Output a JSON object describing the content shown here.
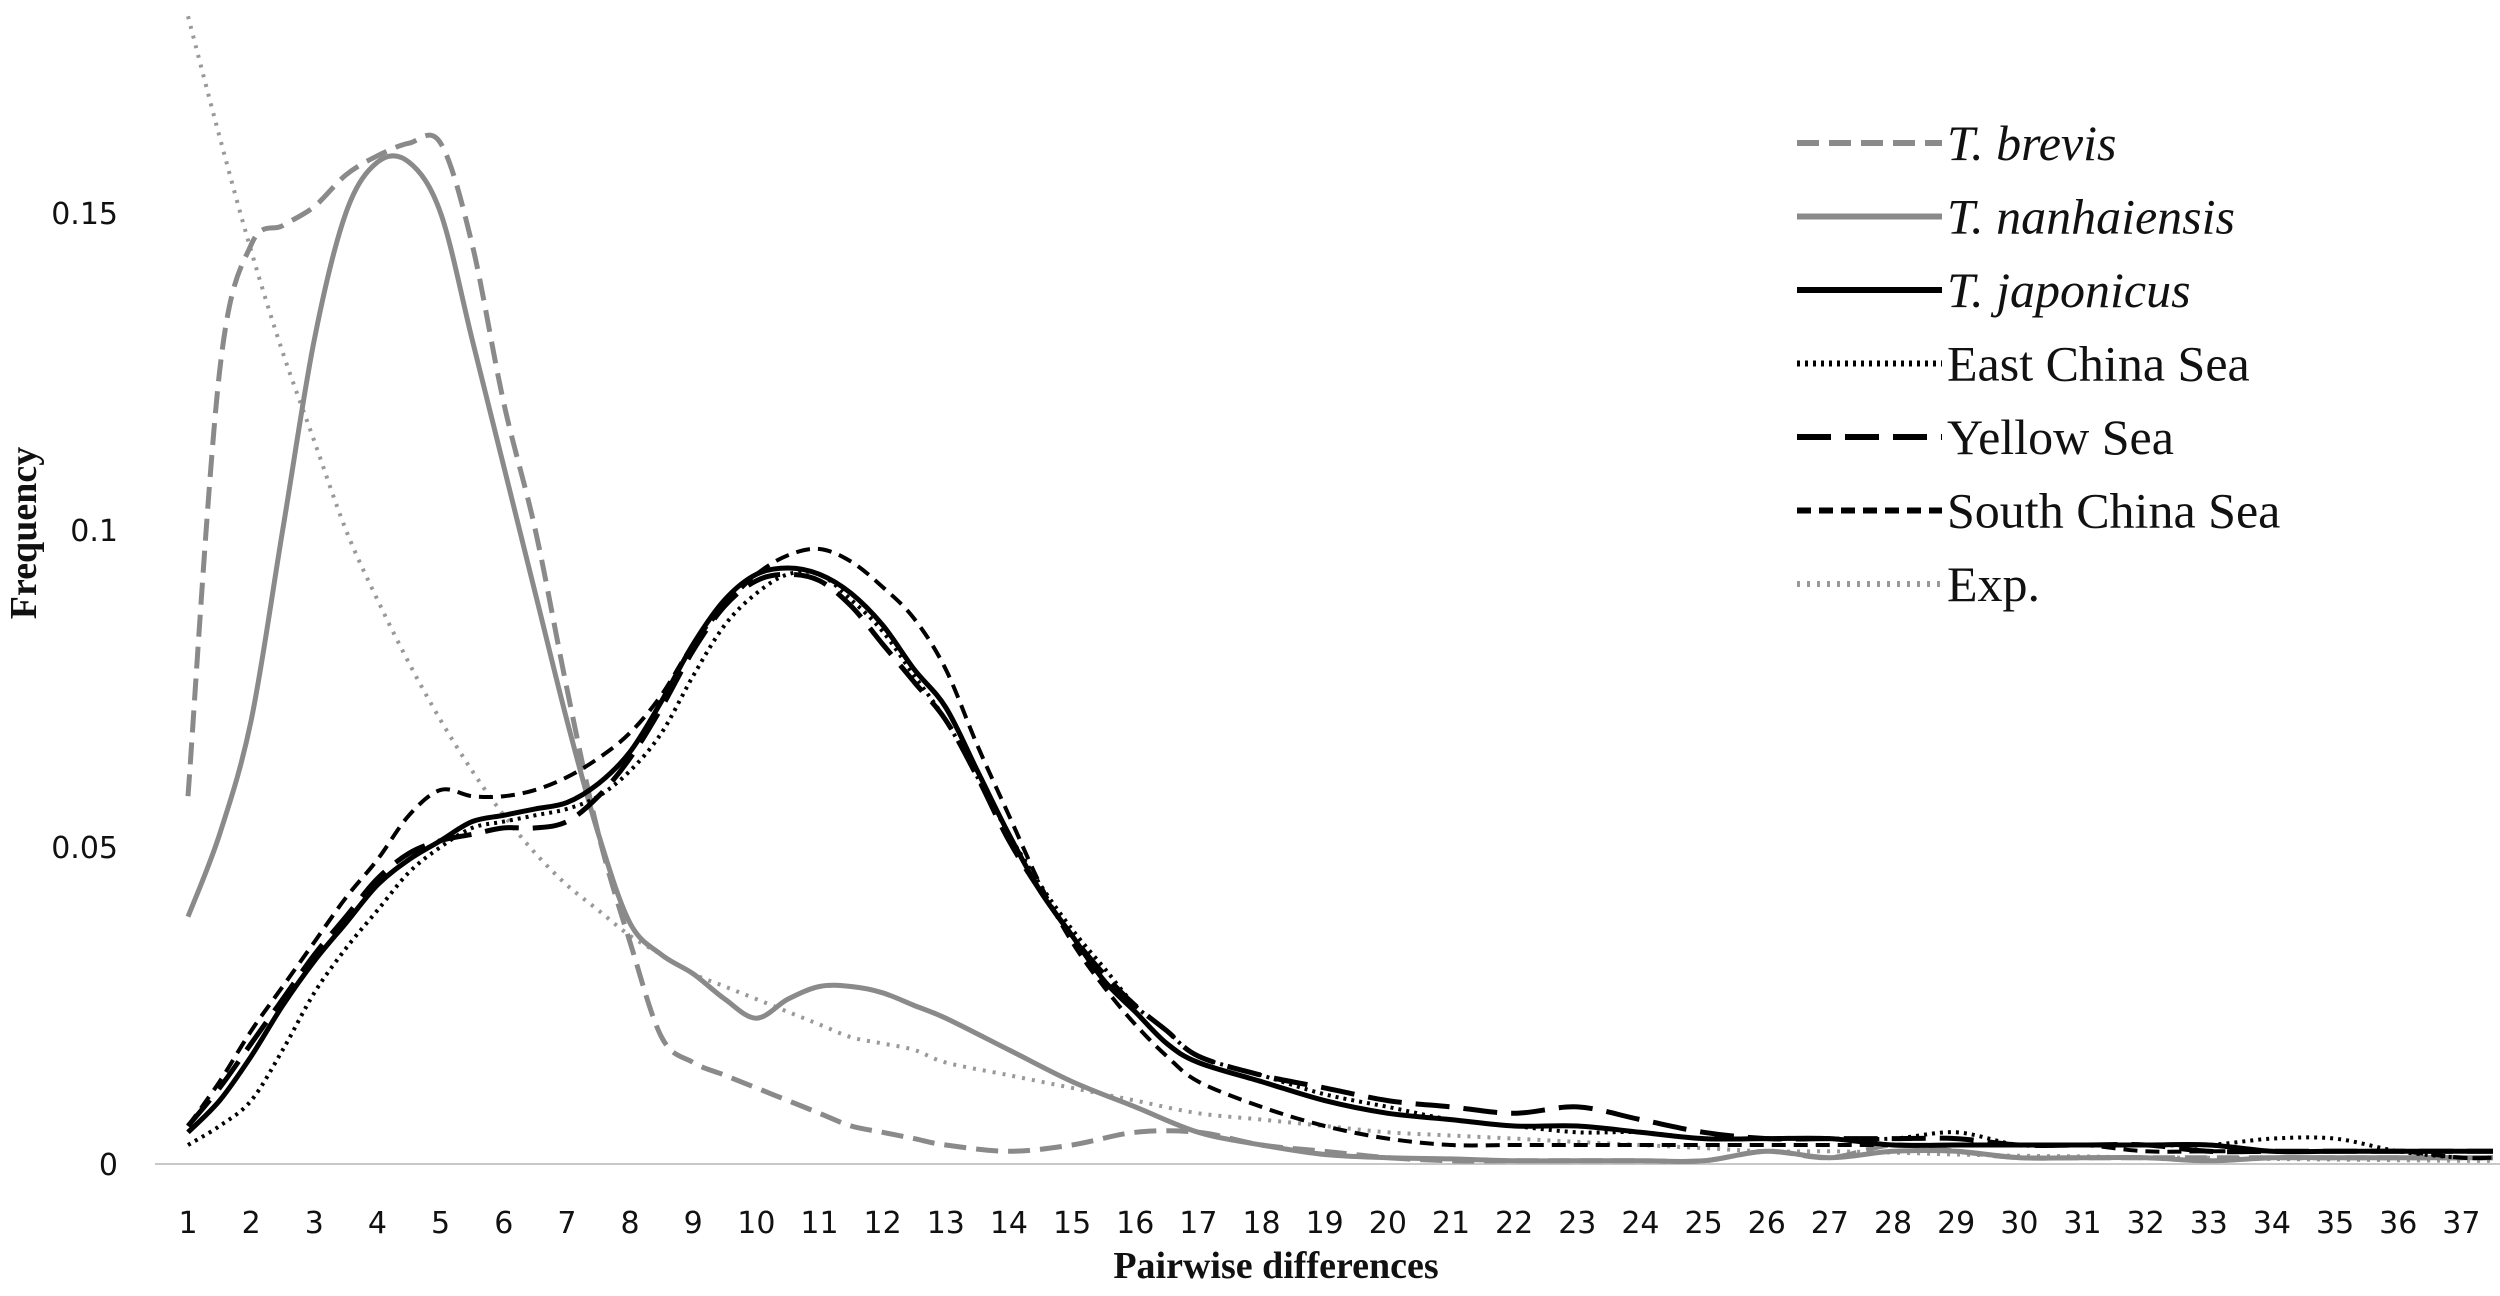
{
  "chart_data": {
    "type": "line",
    "xlabel": "Pairwise differences",
    "ylabel": "Frequency",
    "xlim": [
      1,
      37.5
    ],
    "ylim": [
      0,
      0.182
    ],
    "x_ticks": [
      1,
      2,
      3,
      4,
      5,
      6,
      7,
      8,
      9,
      10,
      11,
      12,
      13,
      14,
      15,
      16,
      17,
      18,
      19,
      20,
      21,
      22,
      23,
      24,
      25,
      26,
      27,
      28,
      29,
      30,
      31,
      32,
      33,
      34,
      35,
      36,
      37
    ],
    "y_ticks": [
      {
        "value": 0,
        "label": "0"
      },
      {
        "value": 0.05,
        "label": "0.05"
      },
      {
        "value": 0.1,
        "label": "0.1"
      },
      {
        "value": 0.15,
        "label": "0.15"
      }
    ],
    "grid": false,
    "legend_position": "top-right",
    "series": [
      {
        "name": "T. brevis",
        "color": "#8a8a8a",
        "style": "dashed",
        "italic": true,
        "x": [
          1,
          1.5,
          2,
          2.5,
          3,
          3.5,
          4,
          4.5,
          5,
          5.5,
          6,
          6.5,
          7,
          7.5,
          8,
          8.5,
          9,
          9.5,
          10,
          10.5,
          11,
          11.5,
          12,
          12.5,
          13,
          14,
          15,
          16,
          17,
          18,
          19,
          20,
          21,
          22,
          23,
          24,
          25,
          26,
          27,
          28,
          29,
          30,
          31,
          32,
          33,
          34,
          35,
          36,
          37,
          37.5
        ],
        "y": [
          0.058,
          0.125,
          0.145,
          0.148,
          0.151,
          0.156,
          0.159,
          0.161,
          0.161,
          0.145,
          0.12,
          0.1,
          0.075,
          0.052,
          0.035,
          0.02,
          0.016,
          0.014,
          0.012,
          0.01,
          0.008,
          0.006,
          0.005,
          0.004,
          0.003,
          0.002,
          0.003,
          0.005,
          0.005,
          0.003,
          0.002,
          0.001,
          0.0005,
          0.0005,
          0.0005,
          0.0005,
          0.0005,
          0.002,
          0.001,
          0.003,
          0.002,
          0.001,
          0.001,
          0.001,
          0.001,
          0.001,
          0.001,
          0.001,
          0.001,
          0.001
        ]
      },
      {
        "name": "T. nanhaiensis",
        "color": "#8a8a8a",
        "style": "solid",
        "italic": true,
        "x": [
          1,
          1.5,
          2,
          2.5,
          3,
          3.5,
          4,
          4.5,
          5,
          5.5,
          6,
          6.5,
          7,
          7.5,
          8,
          8.5,
          9,
          9.5,
          10,
          10.5,
          11,
          11.5,
          12,
          12.5,
          13,
          14,
          15,
          16,
          17,
          18,
          19,
          20,
          21,
          22,
          23,
          24,
          25,
          26,
          27,
          28,
          29,
          30,
          31,
          32,
          33,
          34,
          35,
          36,
          37,
          37.5
        ],
        "y": [
          0.039,
          0.052,
          0.07,
          0.1,
          0.13,
          0.15,
          0.158,
          0.158,
          0.15,
          0.13,
          0.11,
          0.09,
          0.07,
          0.052,
          0.038,
          0.033,
          0.03,
          0.026,
          0.023,
          0.026,
          0.028,
          0.028,
          0.027,
          0.025,
          0.023,
          0.018,
          0.013,
          0.009,
          0.005,
          0.003,
          0.0015,
          0.001,
          0.0008,
          0.0005,
          0.0005,
          0.0005,
          0.0005,
          0.002,
          0.001,
          0.002,
          0.002,
          0.001,
          0.001,
          0.001,
          0.0005,
          0.001,
          0.001,
          0.001,
          0.001,
          0.001
        ]
      },
      {
        "name": "T. japonicus",
        "color": "#000000",
        "style": "solid",
        "italic": true,
        "x": [
          1,
          1.5,
          2,
          2.5,
          3,
          3.5,
          4,
          4.5,
          5,
          5.5,
          6,
          6.5,
          7,
          7.5,
          8,
          8.5,
          9,
          9.5,
          10,
          10.5,
          11,
          11.5,
          12,
          12.5,
          13,
          13.5,
          14,
          14.5,
          15,
          15.5,
          16,
          16.5,
          17,
          18,
          19,
          20,
          21,
          22,
          23,
          24,
          25,
          26,
          27,
          28,
          29,
          30,
          31,
          32,
          33,
          34,
          35,
          36,
          37,
          37.5
        ],
        "y": [
          0.005,
          0.01,
          0.017,
          0.025,
          0.032,
          0.038,
          0.044,
          0.048,
          0.051,
          0.054,
          0.055,
          0.056,
          0.057,
          0.06,
          0.065,
          0.073,
          0.082,
          0.089,
          0.093,
          0.094,
          0.093,
          0.09,
          0.085,
          0.078,
          0.072,
          0.062,
          0.052,
          0.043,
          0.036,
          0.029,
          0.024,
          0.019,
          0.016,
          0.013,
          0.01,
          0.008,
          0.007,
          0.006,
          0.006,
          0.005,
          0.004,
          0.004,
          0.004,
          0.003,
          0.003,
          0.003,
          0.003,
          0.003,
          0.003,
          0.002,
          0.002,
          0.002,
          0.002,
          0.002
        ]
      },
      {
        "name": "East China Sea",
        "color": "#000000",
        "style": "dotted",
        "italic": false,
        "x": [
          1,
          1.5,
          2,
          2.5,
          3,
          3.5,
          4,
          4.5,
          5,
          5.5,
          6,
          6.5,
          7,
          7.5,
          8,
          8.5,
          9,
          9.5,
          10,
          10.5,
          11,
          11.5,
          12,
          12.5,
          13,
          13.5,
          14,
          14.5,
          15,
          15.5,
          16,
          16.5,
          17,
          18,
          19,
          20,
          21,
          22,
          23,
          24,
          25,
          26,
          27,
          28,
          29,
          30,
          31,
          32,
          33,
          34,
          35,
          36,
          37,
          37.5
        ],
        "y": [
          0.003,
          0.006,
          0.01,
          0.018,
          0.027,
          0.034,
          0.04,
          0.046,
          0.05,
          0.053,
          0.054,
          0.055,
          0.056,
          0.058,
          0.062,
          0.068,
          0.077,
          0.085,
          0.09,
          0.093,
          0.093,
          0.089,
          0.084,
          0.077,
          0.07,
          0.061,
          0.052,
          0.044,
          0.037,
          0.031,
          0.025,
          0.021,
          0.017,
          0.014,
          0.011,
          0.009,
          0.007,
          0.006,
          0.005,
          0.005,
          0.004,
          0.004,
          0.004,
          0.004,
          0.005,
          0.003,
          0.003,
          0.003,
          0.003,
          0.004,
          0.004,
          0.002,
          0.001,
          0.001
        ]
      },
      {
        "name": "Yellow Sea",
        "color": "#000000",
        "style": "longdash",
        "italic": false,
        "x": [
          1,
          1.5,
          2,
          2.5,
          3,
          3.5,
          4,
          4.5,
          5,
          5.5,
          6,
          6.5,
          7,
          7.5,
          8,
          8.5,
          9,
          9.5,
          10,
          10.5,
          11,
          11.5,
          12,
          12.5,
          13,
          13.5,
          14,
          14.5,
          15,
          15.5,
          16,
          16.5,
          17,
          18,
          19,
          20,
          21,
          22,
          23,
          24,
          25,
          26,
          27,
          28,
          29,
          30,
          31,
          32,
          33,
          34,
          35,
          36,
          37,
          37.5
        ],
        "y": [
          0.006,
          0.012,
          0.019,
          0.026,
          0.033,
          0.039,
          0.045,
          0.049,
          0.051,
          0.052,
          0.053,
          0.053,
          0.054,
          0.058,
          0.064,
          0.072,
          0.081,
          0.088,
          0.092,
          0.093,
          0.092,
          0.088,
          0.082,
          0.076,
          0.07,
          0.061,
          0.051,
          0.043,
          0.036,
          0.03,
          0.025,
          0.021,
          0.017,
          0.014,
          0.012,
          0.01,
          0.009,
          0.008,
          0.009,
          0.007,
          0.005,
          0.004,
          0.004,
          0.004,
          0.004,
          0.003,
          0.003,
          0.003,
          0.002,
          0.002,
          0.002,
          0.002,
          0.002,
          0.002
        ]
      },
      {
        "name": "South China Sea",
        "color": "#000000",
        "style": "dashed",
        "italic": false,
        "x": [
          1,
          1.5,
          2,
          2.5,
          3,
          3.5,
          4,
          4.5,
          5,
          5.5,
          6,
          6.5,
          7,
          7.5,
          8,
          8.5,
          9,
          9.5,
          10,
          10.5,
          11,
          11.5,
          12,
          12.5,
          13,
          13.5,
          14,
          14.5,
          15,
          15.5,
          16,
          16.5,
          17,
          18,
          19,
          20,
          21,
          22,
          23,
          24,
          25,
          26,
          27,
          28,
          29,
          30,
          31,
          32,
          33,
          34,
          35,
          36,
          37,
          37.5
        ],
        "y": [
          0.006,
          0.013,
          0.021,
          0.028,
          0.035,
          0.042,
          0.048,
          0.055,
          0.059,
          0.058,
          0.058,
          0.059,
          0.061,
          0.064,
          0.068,
          0.074,
          0.082,
          0.088,
          0.093,
          0.096,
          0.097,
          0.095,
          0.091,
          0.086,
          0.078,
          0.066,
          0.055,
          0.044,
          0.035,
          0.028,
          0.022,
          0.017,
          0.013,
          0.009,
          0.006,
          0.004,
          0.003,
          0.003,
          0.003,
          0.003,
          0.003,
          0.003,
          0.003,
          0.003,
          0.003,
          0.003,
          0.003,
          0.002,
          0.002,
          0.002,
          0.002,
          0.002,
          0.001,
          0.001
        ]
      },
      {
        "name": "Exp.",
        "color": "#999999",
        "style": "dotted",
        "italic": false,
        "x": [
          1,
          1.5,
          2,
          2.5,
          3,
          3.5,
          4,
          4.5,
          5,
          5.5,
          6,
          6.5,
          7,
          7.5,
          8,
          8.5,
          9,
          9.5,
          10,
          10.5,
          11,
          11.5,
          12,
          12.5,
          13,
          14,
          15,
          16,
          17,
          18,
          19,
          20,
          21,
          22,
          23,
          24,
          25,
          26,
          27,
          28,
          29,
          30,
          31,
          32,
          33,
          34,
          35,
          36,
          37,
          37.5
        ],
        "y": [
          0.181,
          0.162,
          0.144,
          0.128,
          0.114,
          0.1,
          0.089,
          0.079,
          0.07,
          0.062,
          0.055,
          0.049,
          0.044,
          0.04,
          0.036,
          0.033,
          0.03,
          0.028,
          0.026,
          0.024,
          0.022,
          0.02,
          0.019,
          0.018,
          0.016,
          0.014,
          0.012,
          0.01,
          0.008,
          0.007,
          0.006,
          0.005,
          0.0045,
          0.004,
          0.0035,
          0.003,
          0.0025,
          0.002,
          0.002,
          0.0018,
          0.0015,
          0.0013,
          0.0012,
          0.001,
          0.001,
          0.0008,
          0.0007,
          0.0006,
          0.0005,
          0.0005
        ]
      }
    ]
  }
}
